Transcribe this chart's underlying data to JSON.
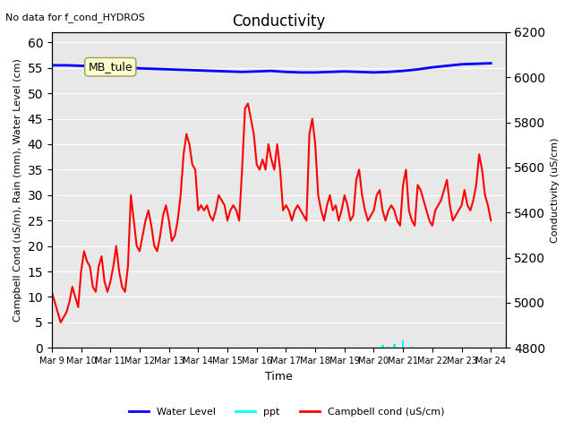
{
  "title": "Conductivity",
  "top_left_text": "No data for f_cond_HYDROS",
  "annotation_box": "MB_tule",
  "xlabel": "Time",
  "ylabel_left": "Campbell Cond (uS/m), Rain (mm), Water Level (cm)",
  "ylabel_right": "Conductivity (uS/cm)",
  "xlim": [
    0,
    15.5
  ],
  "ylim_left": [
    0,
    62
  ],
  "ylim_right": [
    4800,
    6200
  ],
  "yticks_left": [
    0,
    5,
    10,
    15,
    20,
    25,
    30,
    35,
    40,
    45,
    50,
    55,
    60
  ],
  "yticks_right": [
    4800,
    5000,
    5200,
    5400,
    5600,
    5800,
    6000,
    6200
  ],
  "xtick_labels": [
    "Mar 9",
    "Mar 10",
    "Mar 11",
    "Mar 12",
    "Mar 13",
    "Mar 14",
    "Mar 15",
    "Mar 16",
    "Mar 17",
    "Mar 18",
    "Mar 19",
    "Mar 20",
    "Mar 21",
    "Mar 22",
    "Mar 23",
    "Mar 24"
  ],
  "bg_color": "#e8e8e8",
  "grid_color": "white",
  "legend_entries": [
    {
      "label": "Water Level",
      "color": "blue",
      "lw": 2
    },
    {
      "label": "ppt",
      "color": "cyan",
      "lw": 2
    },
    {
      "label": "Campbell cond (uS/cm)",
      "color": "red",
      "lw": 2
    }
  ],
  "water_level_x": [
    0,
    0.5,
    1,
    1.5,
    2,
    2.5,
    3,
    3.5,
    4,
    4.5,
    5,
    5.5,
    6,
    6.5,
    7,
    7.5,
    8,
    8.5,
    9,
    9.5,
    10,
    10.5,
    11,
    11.5,
    12,
    12.5,
    13,
    13.5,
    14,
    14.5,
    15
  ],
  "water_level_y": [
    55.5,
    55.5,
    55.4,
    55.3,
    55.2,
    55.1,
    54.9,
    54.8,
    54.7,
    54.6,
    54.5,
    54.4,
    54.3,
    54.2,
    54.3,
    54.4,
    54.2,
    54.1,
    54.1,
    54.2,
    54.3,
    54.2,
    54.1,
    54.2,
    54.4,
    54.7,
    55.1,
    55.4,
    55.7,
    55.8,
    55.9
  ],
  "ppt_x": [
    11.3,
    11.5,
    11.7,
    12.0,
    12.3
  ],
  "ppt_y": [
    0.5,
    0.3,
    0.8,
    1.5,
    0.2
  ],
  "campbell_x": [
    0.0,
    0.1,
    0.2,
    0.3,
    0.4,
    0.5,
    0.6,
    0.7,
    0.8,
    0.9,
    1.0,
    1.1,
    1.2,
    1.3,
    1.4,
    1.5,
    1.6,
    1.7,
    1.8,
    1.9,
    2.0,
    2.1,
    2.2,
    2.3,
    2.4,
    2.5,
    2.6,
    2.7,
    2.8,
    2.9,
    3.0,
    3.1,
    3.2,
    3.3,
    3.4,
    3.5,
    3.6,
    3.7,
    3.8,
    3.9,
    4.0,
    4.1,
    4.2,
    4.3,
    4.4,
    4.5,
    4.6,
    4.7,
    4.8,
    4.9,
    5.0,
    5.1,
    5.2,
    5.3,
    5.4,
    5.5,
    5.6,
    5.7,
    5.8,
    5.9,
    6.0,
    6.1,
    6.2,
    6.3,
    6.4,
    6.5,
    6.6,
    6.7,
    6.8,
    6.9,
    7.0,
    7.1,
    7.2,
    7.3,
    7.4,
    7.5,
    7.6,
    7.7,
    7.8,
    7.9,
    8.0,
    8.1,
    8.2,
    8.3,
    8.4,
    8.5,
    8.6,
    8.7,
    8.8,
    8.9,
    9.0,
    9.1,
    9.2,
    9.3,
    9.4,
    9.5,
    9.6,
    9.7,
    9.8,
    9.9,
    10.0,
    10.1,
    10.2,
    10.3,
    10.4,
    10.5,
    10.6,
    10.7,
    10.8,
    10.9,
    11.0,
    11.1,
    11.2,
    11.3,
    11.4,
    11.5,
    11.6,
    11.7,
    11.8,
    11.9,
    12.0,
    12.1,
    12.2,
    12.3,
    12.4,
    12.5,
    12.6,
    12.7,
    12.8,
    12.9,
    13.0,
    13.1,
    13.2,
    13.3,
    13.4,
    13.5,
    13.6,
    13.7,
    13.8,
    13.9,
    14.0,
    14.1,
    14.2,
    14.3,
    14.4,
    14.5,
    14.6,
    14.7,
    14.8,
    14.9,
    15.0
  ],
  "campbell_y": [
    11,
    9,
    7,
    5,
    6,
    7,
    9,
    12,
    10,
    8,
    15,
    19,
    17,
    16,
    12,
    11,
    16,
    18,
    13,
    11,
    13,
    16,
    20,
    15,
    12,
    11,
    16,
    30,
    25,
    20,
    19,
    22,
    25,
    27,
    24,
    20,
    19,
    22,
    26,
    28,
    25,
    21,
    22,
    25,
    30,
    38,
    42,
    40,
    36,
    35,
    27,
    28,
    27,
    28,
    26,
    25,
    27,
    30,
    29,
    28,
    25,
    27,
    28,
    27,
    25,
    35,
    47,
    48,
    45,
    42,
    36,
    35,
    37,
    35,
    40,
    37,
    35,
    40,
    35,
    27,
    28,
    27,
    25,
    27,
    28,
    27,
    26,
    25,
    42,
    45,
    40,
    30,
    27,
    25,
    28,
    30,
    27,
    28,
    25,
    27,
    30,
    28,
    25,
    26,
    33,
    35,
    30,
    27,
    25,
    26,
    27,
    30,
    31,
    27,
    25,
    27,
    28,
    27,
    25,
    24,
    32,
    35,
    27,
    25,
    24,
    32,
    31,
    29,
    27,
    25,
    24,
    27,
    28,
    29,
    31,
    33,
    28,
    25,
    26,
    27,
    28,
    31,
    28,
    27,
    29,
    32,
    38,
    35,
    30,
    28,
    25
  ]
}
